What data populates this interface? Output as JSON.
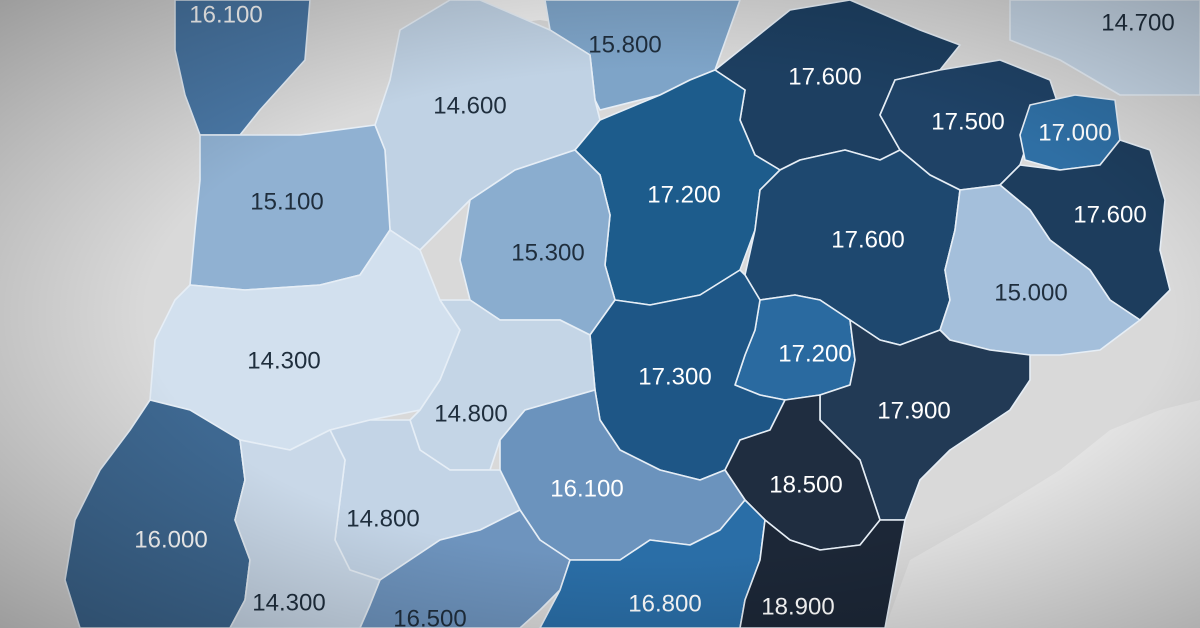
{
  "map": {
    "colors": {
      "background": "#d9d9d9",
      "border": "#e6eef6",
      "label_light": "#ffffff",
      "label_dark": "#1f2e3d"
    },
    "regions": [
      {
        "label": "16.100",
        "fill": "#4a78a6"
      },
      {
        "label": "15.800",
        "fill": "#7ea4c8"
      },
      {
        "label": "14.700",
        "fill": "#c6d6e6"
      },
      {
        "label": "14.600",
        "fill": "#c0d2e4"
      },
      {
        "label": "17.600",
        "fill": "#1d3f61"
      },
      {
        "label": "17.500",
        "fill": "#1f4266"
      },
      {
        "label": "17.000",
        "fill": "#2f6fa4"
      },
      {
        "label": "15.100",
        "fill": "#90b1d2"
      },
      {
        "label": "17.200",
        "fill": "#1d5c8c"
      },
      {
        "label": "17.600",
        "fill": "#1e486f"
      },
      {
        "label": "17.600",
        "fill": "#1d3d5d"
      },
      {
        "label": "15.300",
        "fill": "#8aadcf"
      },
      {
        "label": "15.000",
        "fill": "#a4bfdb"
      },
      {
        "label": "14.300",
        "fill": "#d2e0ee"
      },
      {
        "label": "17.200",
        "fill": "#2a6aa0"
      },
      {
        "label": "17.300",
        "fill": "#1e5686"
      },
      {
        "label": "17.900",
        "fill": "#223a55"
      },
      {
        "label": "14.800",
        "fill": "#c4d5e6"
      },
      {
        "label": "18.500",
        "fill": "#1f2d40"
      },
      {
        "label": "16.100",
        "fill": "#6b93bd"
      },
      {
        "label": "16.000",
        "fill": "#3e6891"
      },
      {
        "label": "14.800",
        "fill": "#c3d4e6"
      },
      {
        "label": "14.300",
        "fill": "#c9d8e8"
      },
      {
        "label": "16.500",
        "fill": "#6e94be"
      },
      {
        "label": "16.800",
        "fill": "#2a6ea7"
      },
      {
        "label": "18.900",
        "fill": "#1c2737"
      }
    ]
  }
}
